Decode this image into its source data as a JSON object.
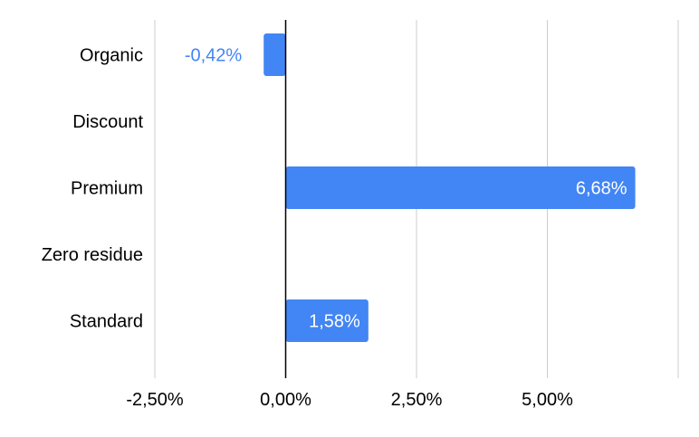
{
  "chart_data": {
    "type": "bar",
    "orientation": "horizontal",
    "categories": [
      "Organic",
      "Discount",
      "Premium",
      "Zero residue",
      "Standard"
    ],
    "series": [
      {
        "values": [
          -0.42,
          null,
          6.68,
          null,
          1.58
        ],
        "data_labels": [
          "-0,42%",
          "",
          "6,68%",
          "",
          "1,58%"
        ],
        "color": "#4285F4"
      }
    ],
    "x_ticks": [
      -2.5,
      0,
      2.5,
      5.0,
      7.5
    ],
    "x_tick_labels": [
      "-2,50%",
      "0,00%",
      "2,50%",
      "5,00%",
      ""
    ],
    "xlim": [
      -2.5,
      7.5
    ],
    "grid": true,
    "legend": "none",
    "colors": {
      "bar": "#4285F4",
      "grid": "#cccccc",
      "zero_line": "#000000",
      "text": "#000000",
      "label_inside": "#ffffff",
      "label_outside": "#4285F4"
    }
  }
}
